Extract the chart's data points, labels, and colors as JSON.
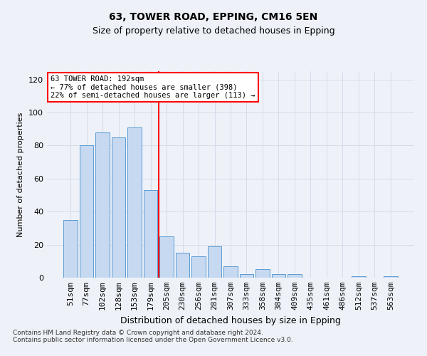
{
  "title1": "63, TOWER ROAD, EPPING, CM16 5EN",
  "title2": "Size of property relative to detached houses in Epping",
  "xlabel": "Distribution of detached houses by size in Epping",
  "ylabel": "Number of detached properties",
  "footnote": "Contains HM Land Registry data © Crown copyright and database right 2024.\nContains public sector information licensed under the Open Government Licence v3.0.",
  "bar_labels": [
    "51sqm",
    "77sqm",
    "102sqm",
    "128sqm",
    "153sqm",
    "179sqm",
    "205sqm",
    "230sqm",
    "256sqm",
    "281sqm",
    "307sqm",
    "333sqm",
    "358sqm",
    "384sqm",
    "409sqm",
    "435sqm",
    "461sqm",
    "486sqm",
    "512sqm",
    "537sqm",
    "563sqm"
  ],
  "bar_values": [
    35,
    80,
    88,
    85,
    91,
    53,
    25,
    15,
    13,
    19,
    7,
    2,
    5,
    2,
    2,
    0,
    0,
    0,
    1,
    0,
    1
  ],
  "bar_color": "#c6d9f0",
  "bar_edge_color": "#5b9bd5",
  "grid_color": "#d0d8e8",
  "annotation_text": "63 TOWER ROAD: 192sqm\n← 77% of detached houses are smaller (398)\n22% of semi-detached houses are larger (113) →",
  "annotation_box_color": "white",
  "annotation_box_edge": "red",
  "vline_color": "red",
  "ylim": [
    0,
    125
  ],
  "yticks": [
    0,
    20,
    40,
    60,
    80,
    100,
    120
  ],
  "background_color": "#eef2f8",
  "title1_fontsize": 10,
  "title2_fontsize": 9,
  "xlabel_fontsize": 9,
  "ylabel_fontsize": 8,
  "tick_fontsize": 8,
  "footnote_fontsize": 6.5
}
